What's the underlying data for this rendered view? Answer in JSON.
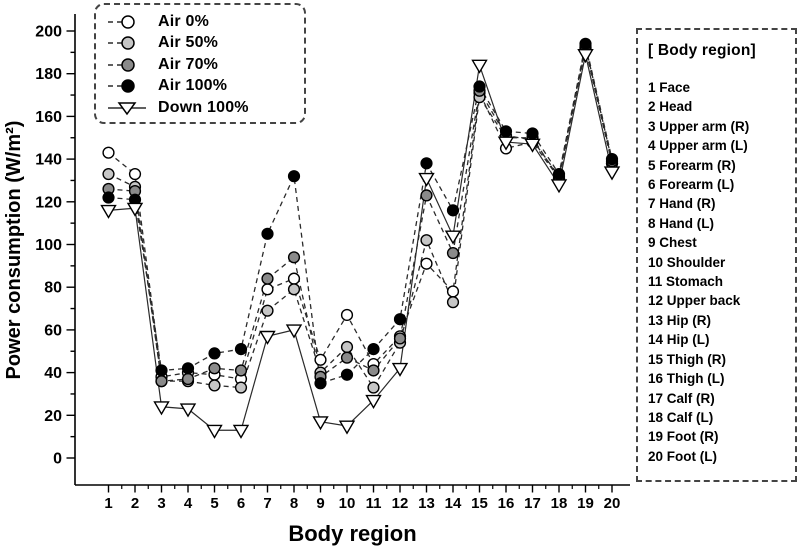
{
  "figure": {
    "xlabel": "Body region",
    "ylabel": "Power consumption (W/m²)"
  },
  "series_legend": {
    "items": [
      {
        "label": "Air 0%",
        "marker": "circle",
        "fill": "#ffffff"
      },
      {
        "label": "Air 50%",
        "marker": "circle",
        "fill": "#c6c6c6"
      },
      {
        "label": "Air 70%",
        "marker": "circle",
        "fill": "#8a8a8a"
      },
      {
        "label": "Air 100%",
        "marker": "circle",
        "fill": "#000000"
      },
      {
        "label": "Down 100%",
        "marker": "triangle-down",
        "fill": "#ffffff"
      }
    ]
  },
  "region_panel": {
    "title": "[ Body region]",
    "items": [
      "1 Face",
      "2 Head",
      "3 Upper arm (R)",
      "4 Upper arm (L)",
      "5 Forearm (R)",
      "6 Forearm (L)",
      "7 Hand (R)",
      "8 Hand (L)",
      "9 Chest",
      "10 Shoulder",
      "11 Stomach",
      "12 Upper back",
      "13 Hip (R)",
      "14 Hip (L)",
      "15 Thigh (R)",
      "16 Thigh (L)",
      "17 Calf (R)",
      "18 Calf (L)",
      "19 Foot (R)",
      "20 Foot (L)"
    ]
  },
  "chart_data": {
    "type": "line",
    "title": "",
    "xlabel": "Body region",
    "ylabel": "Power consumption (W/m²)",
    "categories": [
      "1",
      "2",
      "3",
      "4",
      "5",
      "6",
      "7",
      "8",
      "9",
      "10",
      "11",
      "12",
      "13",
      "14",
      "15",
      "16",
      "17",
      "18",
      "19",
      "20"
    ],
    "ylim": [
      0,
      200
    ],
    "y_tick_step": 20,
    "y_minor_step": 10,
    "grid": false,
    "legend_position": "top-left",
    "series": [
      {
        "name": "Air 0%",
        "marker": "circle",
        "fill": "#ffffff",
        "line": "dashed",
        "values": [
          143,
          133,
          38,
          40,
          39,
          37,
          79,
          84,
          46,
          67,
          44,
          57,
          91,
          78,
          171,
          145,
          148,
          131,
          192,
          138
        ]
      },
      {
        "name": "Air 50%",
        "marker": "circle",
        "fill": "#c6c6c6",
        "line": "dashed",
        "values": [
          133,
          127,
          36,
          36,
          34,
          33,
          69,
          79,
          40,
          52,
          33,
          54,
          102,
          73,
          169,
          150,
          150,
          131,
          192,
          138
        ]
      },
      {
        "name": "Air 70%",
        "marker": "circle",
        "fill": "#8a8a8a",
        "line": "dashed",
        "values": [
          126,
          125,
          36,
          37,
          42,
          41,
          84,
          94,
          38,
          47,
          41,
          56,
          123,
          96,
          172,
          151,
          149,
          132,
          193,
          139
        ]
      },
      {
        "name": "Air 100%",
        "marker": "circle",
        "fill": "#000000",
        "line": "dashed",
        "values": [
          122,
          121,
          41,
          42,
          49,
          51,
          105,
          132,
          35,
          39,
          51,
          65,
          138,
          116,
          174,
          153,
          152,
          133,
          194,
          140
        ]
      },
      {
        "name": "Down 100%",
        "marker": "triangle-down",
        "fill": "#ffffff",
        "line": "solid",
        "values": [
          116,
          117,
          24,
          23,
          13,
          13,
          57,
          60,
          17,
          15,
          27,
          42,
          131,
          104,
          184,
          148,
          147,
          128,
          189,
          134
        ]
      }
    ]
  }
}
